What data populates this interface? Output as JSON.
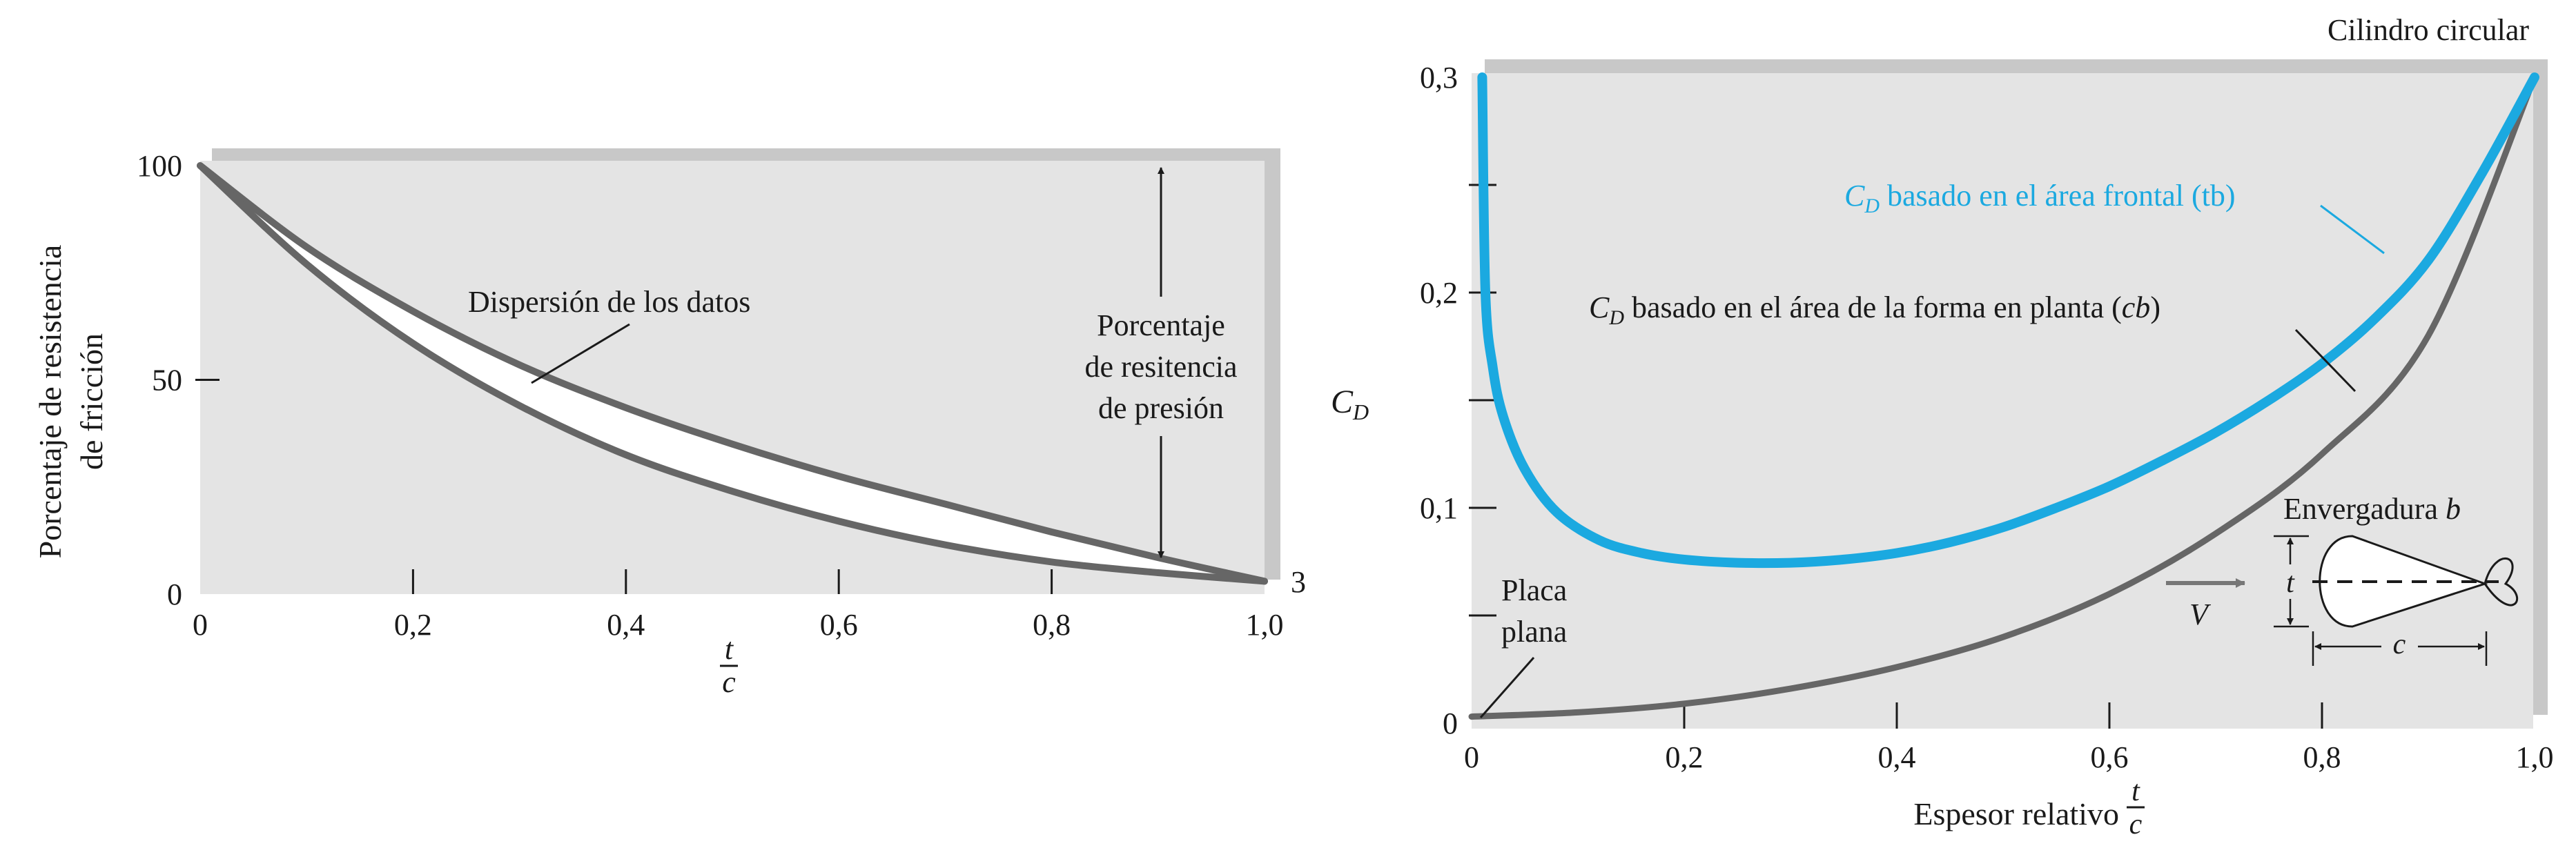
{
  "chart_data": [
    {
      "type": "area",
      "ylabel": [
        "Porcentaje de resistencia",
        "de fricción"
      ],
      "xlabel_num": "t",
      "xlabel_den": "c",
      "xlim": [
        0,
        1.0
      ],
      "ylim": [
        0,
        100
      ],
      "x_ticks": [
        {
          "v": 0,
          "label": "0"
        },
        {
          "v": 0.2,
          "label": "0,2"
        },
        {
          "v": 0.4,
          "label": "0,4"
        },
        {
          "v": 0.6,
          "label": "0,6"
        },
        {
          "v": 0.8,
          "label": "0,8"
        },
        {
          "v": 1.0,
          "label": "1,0"
        }
      ],
      "y_ticks": [
        {
          "v": 0,
          "label": "0"
        },
        {
          "v": 50,
          "label": "50"
        },
        {
          "v": 100,
          "label": "100"
        }
      ],
      "end_label": "3",
      "series": [
        {
          "x": [
            0,
            0.1,
            0.2,
            0.3,
            0.4,
            0.5,
            0.6,
            0.7,
            0.8,
            0.9,
            1.0
          ],
          "values": [
            100,
            81,
            66,
            53.5,
            43.5,
            35,
            27.5,
            21,
            14.5,
            8.5,
            3
          ]
        },
        {
          "x": [
            0,
            0.1,
            0.2,
            0.3,
            0.4,
            0.5,
            0.6,
            0.7,
            0.8,
            0.9,
            1.0
          ],
          "values": [
            100,
            77,
            58.5,
            44,
            32.5,
            24,
            17,
            11.5,
            7.5,
            5,
            3
          ]
        }
      ],
      "annotations": {
        "scatter": "Dispersión de los datos",
        "pressure": [
          "Porcentaje",
          "de resitencia",
          "de presión"
        ]
      }
    },
    {
      "type": "line",
      "ylabel_main": "C",
      "ylabel_sub": "D",
      "xlabel": "Espesor relativo",
      "xlabel_num": "t",
      "xlabel_den": "c",
      "xlim": [
        0,
        1.0
      ],
      "ylim": [
        0,
        0.3
      ],
      "x_ticks": [
        {
          "v": 0,
          "label": "0"
        },
        {
          "v": 0.2,
          "label": "0,2"
        },
        {
          "v": 0.4,
          "label": "0,4"
        },
        {
          "v": 0.6,
          "label": "0,6"
        },
        {
          "v": 0.8,
          "label": "0,8"
        },
        {
          "v": 1.0,
          "label": "1,0"
        }
      ],
      "y_ticks": [
        {
          "v": 0,
          "label": "0"
        },
        {
          "v": 0.1,
          "label": "0,1"
        },
        {
          "v": 0.2,
          "label": "0,2"
        },
        {
          "v": 0.3,
          "label": "0,3"
        }
      ],
      "y_minor_ticks": [
        0.05,
        0.15,
        0.25
      ],
      "top_label": "Cilindro circular",
      "series": [
        {
          "label_main": "C",
          "label_sub": "D",
          "label_text": " basado en el área frontal (tb)",
          "color": "#1ba9e0",
          "x": [
            0.01,
            0.013,
            0.02,
            0.03,
            0.05,
            0.08,
            0.12,
            0.16,
            0.2,
            0.25,
            0.3,
            0.35,
            0.4,
            0.45,
            0.5,
            0.55,
            0.6,
            0.65,
            0.7,
            0.75,
            0.8,
            0.85,
            0.9,
            0.95,
            1.0
          ],
          "values": [
            0.3,
            0.2,
            0.165,
            0.142,
            0.118,
            0.098,
            0.085,
            0.079,
            0.076,
            0.0745,
            0.0745,
            0.076,
            0.079,
            0.084,
            0.091,
            0.1,
            0.11,
            0.122,
            0.135,
            0.15,
            0.167,
            0.188,
            0.215,
            0.255,
            0.3
          ]
        },
        {
          "label_main": "C",
          "label_sub": "D",
          "label_text": " basado en el área de la forma en planta (",
          "label_var": "cb",
          "label_close": ")",
          "color": "#666666",
          "x": [
            0,
            0.1,
            0.2,
            0.3,
            0.4,
            0.5,
            0.6,
            0.7,
            0.8,
            0.9,
            1.0
          ],
          "values": [
            0.003,
            0.005,
            0.009,
            0.016,
            0.026,
            0.04,
            0.06,
            0.088,
            0.125,
            0.18,
            0.3
          ]
        }
      ],
      "annotations": {
        "flat_plate": [
          "Placa",
          "plana"
        ],
        "span_label": "Envergadura ",
        "span_var": "b",
        "velocity": "V",
        "thickness": "t",
        "chord": "c"
      }
    }
  ]
}
